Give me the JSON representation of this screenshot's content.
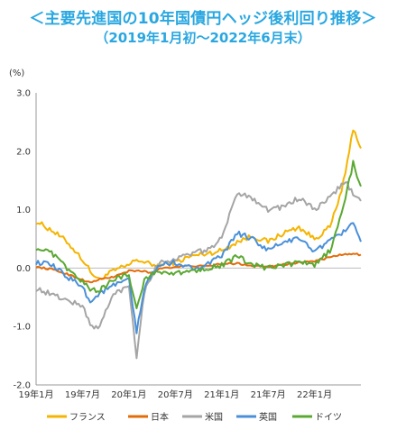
{
  "header": {
    "title_line1": "＜主要先進国の10年国債円ヘッジ後利回り推移＞",
    "title_line2": "（2019年1月初～2022年6月末）"
  },
  "chart_data": {
    "type": "line",
    "title": "＜主要先進国の10年国債円ヘッジ後利回り推移＞",
    "subtitle": "（2019年1月初～2022年6月末）",
    "ylabel": "(%)",
    "xlabel": "",
    "ylim": [
      -2.0,
      3.0
    ],
    "yticks": [
      "3.0",
      "2.0",
      "1.0",
      "0.0",
      "-1.0",
      "-2.0"
    ],
    "ytick_values": [
      3.0,
      2.0,
      1.0,
      0.0,
      -1.0,
      -2.0
    ],
    "xticks": [
      "19年1月",
      "19年7月",
      "20年1月",
      "20年7月",
      "21年1月",
      "21年7月",
      "22年1月"
    ],
    "xtick_months": [
      0,
      6,
      12,
      18,
      24,
      30,
      36
    ],
    "x_months": [
      0,
      2,
      4,
      6,
      7,
      8,
      10,
      12,
      13,
      14,
      15,
      16,
      18,
      20,
      22,
      24,
      26,
      28,
      30,
      32,
      34,
      36,
      38,
      39,
      40,
      41,
      42
    ],
    "legend_position": "bottom",
    "grid": false,
    "series": [
      {
        "name": "フランス",
        "color": "#f5b400",
        "values": [
          0.8,
          0.65,
          0.45,
          0.15,
          -0.05,
          -0.2,
          -0.05,
          0.05,
          0.15,
          0.1,
          0.05,
          0.05,
          0.1,
          0.2,
          0.25,
          0.3,
          0.45,
          0.55,
          0.45,
          0.6,
          0.7,
          0.5,
          0.7,
          1.1,
          1.6,
          2.4,
          2.05
        ]
      },
      {
        "name": "日本",
        "color": "#e36c0a",
        "values": [
          0.02,
          -0.02,
          -0.1,
          -0.2,
          -0.25,
          -0.2,
          -0.15,
          -0.05,
          -0.05,
          -0.05,
          -0.1,
          0.0,
          0.02,
          0.04,
          0.03,
          0.07,
          0.08,
          0.04,
          0.03,
          0.06,
          0.1,
          0.12,
          0.18,
          0.22,
          0.23,
          0.24,
          0.23
        ]
      },
      {
        "name": "米国",
        "color": "#a5a5a5",
        "values": [
          -0.35,
          -0.45,
          -0.55,
          -0.65,
          -0.95,
          -1.05,
          -0.45,
          -0.3,
          -1.5,
          -0.4,
          -0.1,
          0.1,
          0.15,
          0.25,
          0.3,
          0.5,
          1.3,
          1.2,
          1.0,
          1.05,
          1.2,
          1.0,
          1.2,
          1.35,
          1.5,
          1.25,
          1.15
        ]
      },
      {
        "name": "英国",
        "color": "#4a90d9",
        "values": [
          0.1,
          0.05,
          -0.15,
          -0.3,
          -0.6,
          -0.45,
          -0.3,
          -0.2,
          -1.1,
          -0.35,
          -0.1,
          0.05,
          0.1,
          0.0,
          0.05,
          0.2,
          0.6,
          0.5,
          0.3,
          0.45,
          0.5,
          0.3,
          0.45,
          0.55,
          0.65,
          0.8,
          0.45
        ]
      },
      {
        "name": "ドイツ",
        "color": "#5aa832",
        "values": [
          0.35,
          0.25,
          0.0,
          -0.25,
          -0.35,
          -0.4,
          -0.2,
          -0.1,
          -0.7,
          -0.2,
          -0.1,
          -0.05,
          -0.1,
          -0.05,
          0.0,
          0.05,
          0.2,
          0.05,
          0.0,
          0.05,
          0.1,
          0.05,
          0.3,
          0.7,
          1.2,
          1.8,
          1.4
        ]
      }
    ]
  }
}
